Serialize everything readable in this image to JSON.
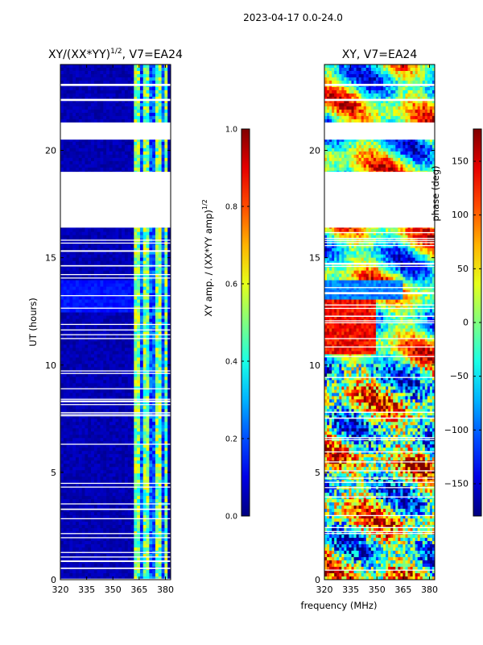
{
  "suptitle": "2023-04-17 0.0-24.0",
  "shared_xlabel": "frequency (MHz)",
  "chart_data": [
    {
      "type": "heatmap",
      "title_main": "XY/(XX*YY)",
      "title_sup": "1/2",
      "title_suffix": ", V7=EA24",
      "ylabel": "UT (hours)",
      "xlim": [
        320,
        383
      ],
      "ylim": [
        0,
        24
      ],
      "xticks": [
        320,
        335,
        350,
        365,
        380
      ],
      "yticks": [
        0,
        5,
        10,
        15,
        20
      ],
      "colorbar": {
        "label_main": "XY amp. / (XX*YY amp)",
        "label_sup": "1/2",
        "range": [
          0.0,
          1.0
        ],
        "ticks": [
          0.0,
          0.2,
          0.4,
          0.6,
          0.8,
          1.0
        ],
        "tick_labels": [
          "0.0",
          "0.2",
          "0.4",
          "0.6",
          "0.8",
          "1.0"
        ],
        "colormap": "jet"
      },
      "bright_band_mhz": [
        362,
        382
      ],
      "gaps_hours": [
        [
          16.4,
          19.0
        ],
        [
          20.5,
          21.3
        ],
        [
          22.3,
          22.4
        ],
        [
          23.0,
          23.1
        ]
      ]
    },
    {
      "type": "heatmap",
      "title_main": "XY, V7=EA24",
      "ylabel": "",
      "xlim": [
        320,
        383
      ],
      "ylim": [
        0,
        24
      ],
      "xticks": [
        320,
        335,
        350,
        365,
        380
      ],
      "yticks": [
        0,
        5,
        10,
        15,
        20
      ],
      "colorbar": {
        "label_main": "phase (deg)",
        "range": [
          -180,
          180
        ],
        "ticks": [
          -150,
          -100,
          -50,
          0,
          50,
          100,
          150
        ],
        "tick_labels": [
          "−150",
          "−100",
          "−50",
          "0",
          "50",
          "100",
          "150"
        ],
        "colormap": "jet"
      },
      "gaps_hours": [
        [
          16.4,
          19.0
        ],
        [
          20.5,
          21.3
        ],
        [
          22.3,
          22.4
        ],
        [
          23.0,
          23.1
        ]
      ]
    }
  ]
}
